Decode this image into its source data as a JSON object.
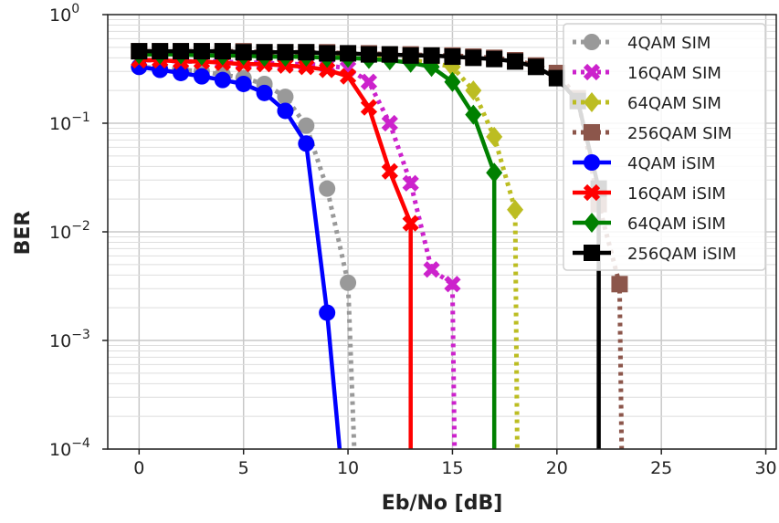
{
  "chart_data": {
    "type": "line",
    "title": "",
    "xlabel": "Eb/No [dB]",
    "ylabel": "BER",
    "yscale": "log",
    "xlim": [
      -1.5,
      30.5
    ],
    "ylim": [
      0.0001,
      1
    ],
    "x_ticks": [
      0,
      5,
      10,
      15,
      20,
      25,
      30
    ],
    "y_ticks": [
      {
        "value": 0.0001,
        "base": "10",
        "exp": "−4"
      },
      {
        "value": 0.001,
        "base": "10",
        "exp": "−3"
      },
      {
        "value": 0.01,
        "base": "10",
        "exp": "−2"
      },
      {
        "value": 0.1,
        "base": "10",
        "exp": "−1"
      },
      {
        "value": 1,
        "base": "10",
        "exp": "0"
      }
    ],
    "grid": "major and minor",
    "legend_position": "top-right",
    "series": [
      {
        "name": "4QAM SIM",
        "color": "#999999",
        "line": "dotted",
        "marker": "circle",
        "x": [
          0,
          1,
          2,
          3,
          4,
          5,
          6,
          7,
          8,
          9,
          10,
          10.3
        ],
        "y": [
          0.33,
          0.32,
          0.31,
          0.3,
          0.28,
          0.26,
          0.23,
          0.175,
          0.095,
          0.025,
          0.0034,
          0.0001
        ]
      },
      {
        "name": "16QAM SIM",
        "color": "#cc22cc",
        "line": "dotted",
        "marker": "x",
        "x": [
          0,
          1,
          2,
          3,
          4,
          5,
          6,
          7,
          8,
          9,
          10,
          11,
          12,
          13,
          14,
          15,
          15.1
        ],
        "y": [
          0.38,
          0.38,
          0.37,
          0.37,
          0.37,
          0.36,
          0.36,
          0.35,
          0.35,
          0.34,
          0.32,
          0.24,
          0.1,
          0.028,
          0.0045,
          0.0033,
          0.0001
        ]
      },
      {
        "name": "64QAM SIM",
        "color": "#bcbd22",
        "line": "dotted",
        "marker": "diamond",
        "x": [
          0,
          1,
          2,
          3,
          4,
          5,
          6,
          7,
          8,
          9,
          10,
          11,
          12,
          13,
          14,
          15,
          16,
          17,
          18,
          18.1
        ],
        "y": [
          0.43,
          0.43,
          0.43,
          0.43,
          0.42,
          0.42,
          0.42,
          0.41,
          0.41,
          0.41,
          0.4,
          0.4,
          0.39,
          0.38,
          0.36,
          0.33,
          0.2,
          0.075,
          0.016,
          0.0001
        ]
      },
      {
        "name": "256QAM SIM",
        "color": "#8c564b",
        "line": "dotted",
        "marker": "square",
        "x": [
          0,
          1,
          2,
          3,
          4,
          5,
          6,
          7,
          8,
          9,
          10,
          11,
          12,
          13,
          14,
          15,
          16,
          17,
          18,
          19,
          20,
          21,
          22,
          23,
          23.1
        ],
        "y": [
          0.46,
          0.46,
          0.46,
          0.46,
          0.46,
          0.46,
          0.45,
          0.45,
          0.45,
          0.45,
          0.44,
          0.44,
          0.43,
          0.43,
          0.42,
          0.42,
          0.41,
          0.4,
          0.38,
          0.34,
          0.29,
          0.17,
          0.018,
          0.0033,
          0.0001
        ]
      },
      {
        "name": "4QAM iSIM",
        "color": "#0000ff",
        "line": "solid",
        "marker": "circle",
        "x": [
          0,
          1,
          2,
          3,
          4,
          5,
          6,
          7,
          8,
          9,
          9.6
        ],
        "y": [
          0.33,
          0.31,
          0.29,
          0.27,
          0.25,
          0.23,
          0.19,
          0.13,
          0.065,
          0.0018,
          0.0001
        ]
      },
      {
        "name": "16QAM iSIM",
        "color": "#ff0000",
        "line": "solid",
        "marker": "x",
        "x": [
          0,
          1,
          2,
          3,
          4,
          5,
          6,
          7,
          8,
          9,
          10,
          11,
          12,
          13,
          13
        ],
        "y": [
          0.38,
          0.38,
          0.37,
          0.37,
          0.36,
          0.35,
          0.35,
          0.34,
          0.33,
          0.31,
          0.27,
          0.14,
          0.036,
          0.012,
          0.0001
        ]
      },
      {
        "name": "64QAM iSIM",
        "color": "#008000",
        "line": "solid",
        "marker": "diamond",
        "x": [
          0,
          1,
          2,
          3,
          4,
          5,
          6,
          7,
          8,
          9,
          10,
          11,
          12,
          13,
          14,
          15,
          16,
          17,
          17
        ],
        "y": [
          0.43,
          0.43,
          0.43,
          0.42,
          0.42,
          0.42,
          0.41,
          0.41,
          0.41,
          0.4,
          0.4,
          0.39,
          0.38,
          0.36,
          0.33,
          0.24,
          0.12,
          0.035,
          0.0001
        ]
      },
      {
        "name": "256QAM iSIM",
        "color": "#000000",
        "line": "solid",
        "marker": "square",
        "x": [
          0,
          1,
          2,
          3,
          4,
          5,
          6,
          7,
          8,
          9,
          10,
          11,
          12,
          13,
          14,
          15,
          16,
          17,
          18,
          19,
          20,
          21,
          22,
          22
        ],
        "y": [
          0.46,
          0.46,
          0.46,
          0.46,
          0.46,
          0.45,
          0.45,
          0.45,
          0.45,
          0.44,
          0.44,
          0.43,
          0.43,
          0.42,
          0.42,
          0.41,
          0.4,
          0.39,
          0.37,
          0.33,
          0.26,
          0.16,
          0.025,
          0.0001
        ]
      }
    ]
  }
}
